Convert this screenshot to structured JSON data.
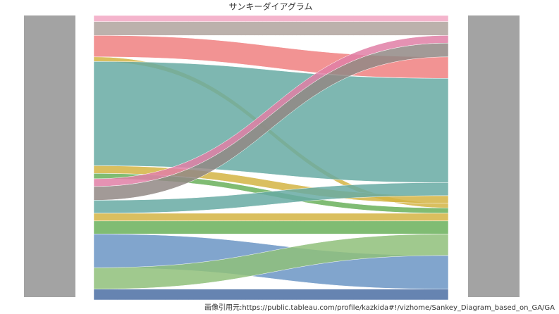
{
  "chart_data": {
    "type": "sankey",
    "title": "サンキーダイアグラム",
    "source_note": "画像引用元:https://public.tableau.com/profile/kazkida#!/vizhome/Sankey_Diagram_based_on_GA/GA",
    "flows": [
      {
        "color": "#f2a7c3",
        "value": 8,
        "target": 0
      },
      {
        "color": "#b0a39e",
        "value": 18,
        "target": 1
      },
      {
        "color": "#f08080",
        "value": 28,
        "target": 4
      },
      {
        "color": "#d4b443",
        "value": 6,
        "target": 8
      },
      {
        "color": "#67aaa3",
        "value": 136,
        "target": 5
      },
      {
        "color": "#d4b443",
        "value": 10,
        "target": 7
      },
      {
        "color": "#6ab05a",
        "value": 7,
        "target": 9
      },
      {
        "color": "#e17fa6",
        "value": 10,
        "target": 2
      },
      {
        "color": "#928885",
        "value": 18,
        "target": 3
      },
      {
        "color": "#67aaa3",
        "value": 17,
        "target": 6
      },
      {
        "color": "#d4b443",
        "value": 10,
        "target": 10
      },
      {
        "color": "#6ab05a",
        "value": 17,
        "target": 11
      },
      {
        "color": "#6b95c4",
        "value": 44,
        "target": 13
      },
      {
        "color": "#8fbf7a",
        "value": 28,
        "target": 12
      },
      {
        "color": "#4b6fa3",
        "value": 14,
        "target": 14
      }
    ]
  }
}
